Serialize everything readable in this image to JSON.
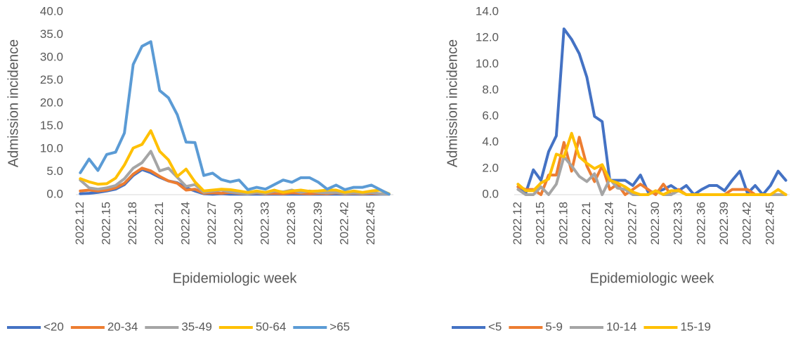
{
  "chart_data": [
    {
      "type": "line",
      "y_label": "Admission incidence",
      "x_label": "Epidemiologic week",
      "categories": [
        "2022.12",
        null,
        null,
        "2022.15",
        null,
        null,
        "2022.18",
        null,
        null,
        "2022.21",
        null,
        null,
        "2022.24",
        null,
        null,
        "2022.27",
        null,
        null,
        "2022.30",
        null,
        null,
        "2022.33",
        null,
        null,
        "2022.36",
        null,
        null,
        "2022.39",
        null,
        null,
        "2022.42",
        null,
        null,
        "2022.45",
        null,
        null
      ],
      "ylim": [
        0,
        40
      ],
      "yticks": [
        {
          "value": 0,
          "label": "0.0"
        },
        {
          "value": 5,
          "label": "5.0"
        },
        {
          "value": 10,
          "label": "10.0"
        },
        {
          "value": 15,
          "label": "15.0"
        },
        {
          "value": 20,
          "label": "20.0"
        },
        {
          "value": 25,
          "label": "25.0"
        },
        {
          "value": 30,
          "label": "30.0"
        },
        {
          "value": 35,
          "label": "35.0"
        },
        {
          "value": 40,
          "label": "40.0"
        }
      ],
      "legend": "bottom",
      "series": [
        {
          "name": "<20",
          "color": "#4472c4",
          "values": [
            0.2,
            0.3,
            0.5,
            0.8,
            1.2,
            2.2,
            4.2,
            5.5,
            4.8,
            3.8,
            3.0,
            2.6,
            1.5,
            0.8,
            0.2,
            0.1,
            0.2,
            0.1,
            0.1,
            0.1,
            0.1,
            0.1,
            0.1,
            0.1,
            0.1,
            0.1,
            0.1,
            0.1,
            0.1,
            0.1,
            0.1,
            0.1,
            0.1,
            0.1,
            0.1,
            0.1
          ]
        },
        {
          "name": "20-34",
          "color": "#ed7d31",
          "values": [
            0.8,
            1.0,
            0.8,
            1.0,
            1.5,
            2.5,
            4.5,
            5.8,
            5.2,
            4.0,
            3.0,
            2.5,
            1.0,
            1.2,
            0.3,
            0.4,
            0.3,
            0.5,
            0.3,
            0.2,
            0.4,
            0.2,
            0.3,
            0.2,
            0.4,
            0.3,
            0.2,
            0.3,
            0.2,
            0.4,
            0.2,
            0.3,
            0.2,
            0.3,
            0.2,
            0.1
          ]
        },
        {
          "name": "35-49",
          "color": "#a5a5a5",
          "values": [
            3.2,
            1.5,
            1.2,
            1.5,
            2.0,
            3.5,
            5.8,
            7.0,
            9.5,
            5.2,
            5.8,
            3.8,
            1.8,
            2.2,
            0.5,
            0.8,
            1.0,
            0.6,
            0.4,
            0.2,
            0.5,
            0.3,
            0.8,
            0.6,
            1.0,
            0.5,
            0.8,
            0.5,
            0.4,
            0.5,
            0.3,
            0.4,
            0.3,
            0.5,
            0.2,
            0.1
          ]
        },
        {
          "name": "50-64",
          "color": "#ffc000",
          "values": [
            3.5,
            2.8,
            2.3,
            2.4,
            3.6,
            6.5,
            10.2,
            11.0,
            14.0,
            9.5,
            7.6,
            4.0,
            5.6,
            2.8,
            0.8,
            1.0,
            1.2,
            1.1,
            0.8,
            0.5,
            0.8,
            0.5,
            1.0,
            0.5,
            0.8,
            1.0,
            0.7,
            0.8,
            1.0,
            1.0,
            0.5,
            0.8,
            0.5,
            0.8,
            1.0,
            0.2
          ]
        },
        {
          "name": ">65",
          "color": "#5b9bd5",
          "values": [
            4.8,
            7.8,
            5.3,
            8.8,
            9.3,
            13.5,
            28.5,
            32.5,
            33.5,
            22.8,
            21.2,
            17.5,
            11.5,
            11.4,
            4.2,
            4.7,
            3.3,
            2.8,
            3.2,
            1.1,
            1.6,
            1.2,
            2.2,
            3.2,
            2.7,
            3.7,
            3.7,
            2.7,
            1.2,
            2.1,
            1.1,
            1.6,
            1.6,
            2.1,
            1.1,
            0.1
          ]
        }
      ]
    },
    {
      "type": "line",
      "y_label": "Admission incidence",
      "x_label": "Epidemiologic week",
      "categories": [
        "2022.12",
        null,
        null,
        "2022.15",
        null,
        null,
        "2022.18",
        null,
        null,
        "2022.21",
        null,
        null,
        "2022.24",
        null,
        null,
        "2022.27",
        null,
        null,
        "2022.30",
        null,
        null,
        "2022.33",
        null,
        null,
        "2022.36",
        null,
        null,
        "2022.39",
        null,
        null,
        "2022.42",
        null,
        null,
        "2022.45",
        null,
        null
      ],
      "ylim": [
        0,
        14
      ],
      "yticks": [
        {
          "value": 0,
          "label": "0.0"
        },
        {
          "value": 2,
          "label": "2.0"
        },
        {
          "value": 4,
          "label": "4.0"
        },
        {
          "value": 6,
          "label": "6.0"
        },
        {
          "value": 8,
          "label": "8.0"
        },
        {
          "value": 10,
          "label": "10.0"
        },
        {
          "value": 12,
          "label": "12.0"
        },
        {
          "value": 14,
          "label": "14.0"
        }
      ],
      "legend": "bottom",
      "series": [
        {
          "name": "<5",
          "color": "#4472c4",
          "values": [
            0.6,
            0.1,
            1.9,
            1.1,
            3.3,
            4.5,
            12.7,
            11.9,
            10.8,
            9.0,
            6.0,
            5.6,
            1.1,
            1.1,
            1.1,
            0.7,
            1.5,
            0.2,
            0.2,
            0.4,
            0.7,
            0.3,
            0.7,
            0.0,
            0.4,
            0.7,
            0.7,
            0.3,
            1.1,
            1.8,
            0.1,
            0.7,
            0.0,
            0.7,
            1.8,
            1.1
          ]
        },
        {
          "name": "5-9",
          "color": "#ed7d31",
          "values": [
            0.6,
            0.4,
            0.4,
            0.0,
            1.5,
            1.5,
            4.0,
            1.8,
            4.4,
            2.2,
            1.0,
            2.2,
            0.4,
            0.8,
            0.0,
            0.4,
            0.8,
            0.4,
            0.0,
            0.8,
            0.0,
            0.4,
            0.0,
            0.0,
            0.0,
            0.0,
            0.0,
            0.0,
            0.4,
            0.4,
            0.4,
            0.0,
            0.0,
            0.0,
            0.0,
            0.0
          ]
        },
        {
          "name": "10-14",
          "color": "#a5a5a5",
          "values": [
            0.4,
            0.0,
            0.0,
            0.6,
            0.0,
            0.8,
            2.9,
            2.2,
            1.4,
            1.0,
            1.6,
            0.0,
            1.2,
            0.5,
            0.4,
            0.0,
            0.0,
            0.0,
            0.3,
            0.0,
            0.0,
            0.3,
            0.0,
            0.0,
            0.0,
            0.0,
            0.0,
            0.0,
            0.0,
            0.0,
            0.0,
            0.0,
            0.0,
            0.0,
            0.0,
            0.0
          ]
        },
        {
          "name": "15-19",
          "color": "#ffc000",
          "values": [
            0.8,
            0.3,
            0.3,
            0.9,
            1.2,
            3.1,
            2.9,
            4.7,
            2.9,
            2.4,
            2.0,
            2.3,
            1.1,
            0.9,
            0.6,
            0.2,
            0.0,
            0.0,
            0.3,
            0.0,
            0.3,
            0.3,
            0.0,
            0.0,
            0.0,
            0.0,
            0.0,
            0.0,
            0.0,
            0.0,
            0.0,
            0.0,
            0.0,
            0.0,
            0.4,
            0.0
          ]
        }
      ]
    }
  ]
}
